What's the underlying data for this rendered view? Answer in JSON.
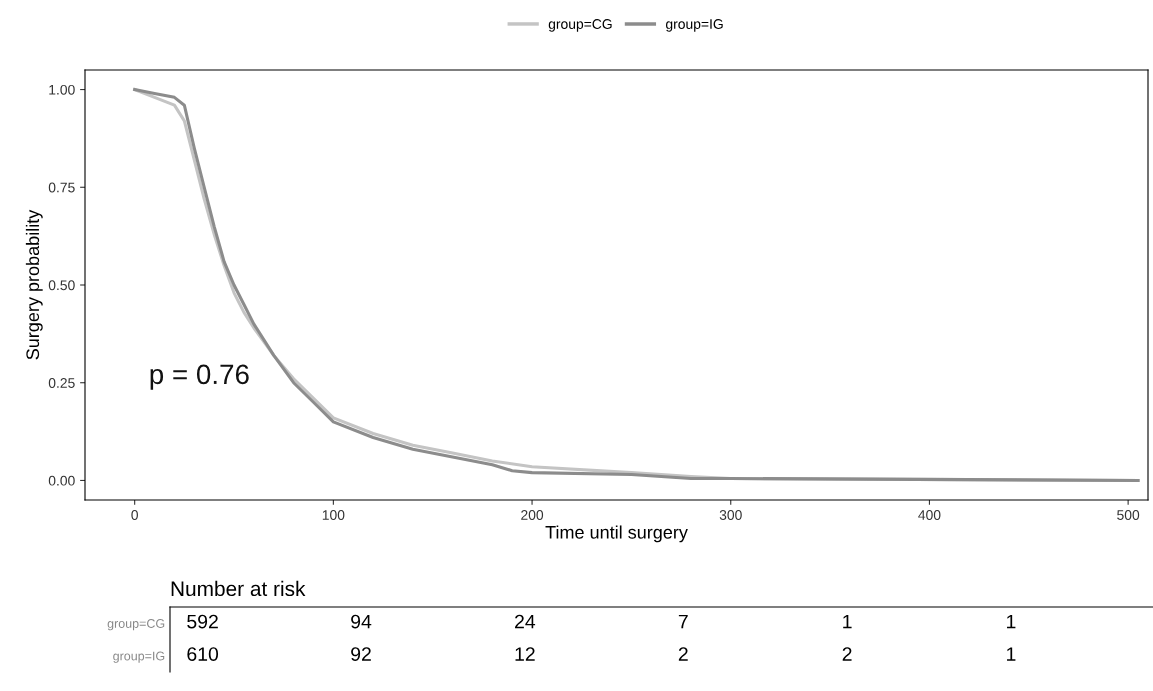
{
  "chart_data": [
    {
      "type": "line",
      "xlabel": "Time until surgery",
      "ylabel": "Surgery probability",
      "xlim": [
        -25,
        510
      ],
      "ylim": [
        -0.05,
        1.05
      ],
      "xticks": [
        0,
        100,
        200,
        300,
        400,
        500
      ],
      "yticks": [
        {
          "value": 0,
          "label": "0.00"
        },
        {
          "value": 0.25,
          "label": "0.25"
        },
        {
          "value": 0.5,
          "label": "0.50"
        },
        {
          "value": 0.75,
          "label": "0.75"
        },
        {
          "value": 1,
          "label": "1.00"
        }
      ],
      "legend": "top",
      "grid": false,
      "annotations": [
        "p = 0.76"
      ],
      "series": [
        {
          "name": "group=CG",
          "color": "#c4c4c4",
          "x": [
            0,
            10,
            20,
            25,
            30,
            35,
            40,
            45,
            50,
            55,
            60,
            70,
            80,
            90,
            100,
            120,
            140,
            160,
            180,
            200,
            250,
            280,
            300,
            505
          ],
          "values": [
            1.0,
            0.98,
            0.96,
            0.92,
            0.82,
            0.72,
            0.63,
            0.55,
            0.48,
            0.43,
            0.39,
            0.32,
            0.26,
            0.21,
            0.16,
            0.12,
            0.09,
            0.07,
            0.05,
            0.035,
            0.02,
            0.01,
            0.005,
            0.0
          ]
        },
        {
          "name": "group=IG",
          "color": "#8c8c8c",
          "x": [
            0,
            10,
            20,
            25,
            30,
            35,
            40,
            45,
            50,
            55,
            60,
            70,
            80,
            90,
            100,
            120,
            140,
            160,
            180,
            190,
            200,
            250,
            280,
            300,
            505
          ],
          "values": [
            1.0,
            0.99,
            0.98,
            0.96,
            0.85,
            0.75,
            0.65,
            0.56,
            0.5,
            0.45,
            0.4,
            0.32,
            0.25,
            0.2,
            0.15,
            0.11,
            0.08,
            0.06,
            0.04,
            0.025,
            0.02,
            0.015,
            0.005,
            0.005,
            0.0
          ]
        }
      ]
    },
    {
      "type": "heatmap",
      "title": "Number at risk",
      "categories": [
        null,
        null,
        null,
        null,
        null,
        null
      ],
      "y_categories": [
        "group=CG",
        "group=IG"
      ],
      "cells": [
        [
          592,
          94,
          24,
          7,
          1,
          1
        ],
        [
          610,
          92,
          12,
          2,
          2,
          1
        ]
      ],
      "color": "#ffffff",
      "data_labels": true
    }
  ]
}
